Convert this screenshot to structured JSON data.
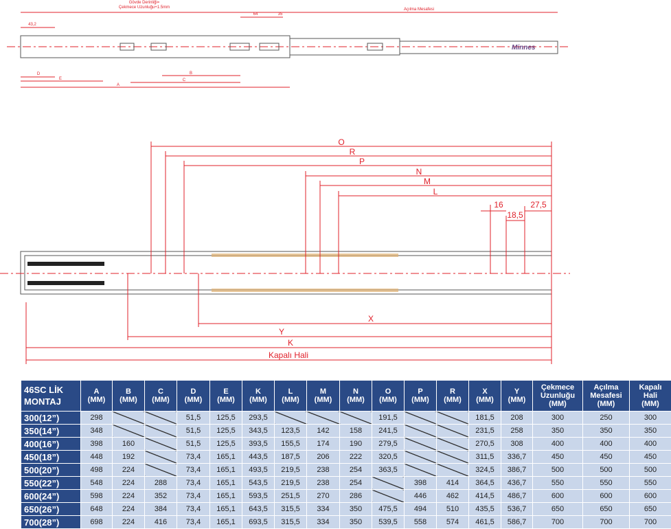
{
  "top_drawing": {
    "title_lines": [
      "Gövde Derinliği=",
      "Çekmece Uzunluğu+1.5mm"
    ],
    "opening_label": "Açılma Mesafesi",
    "dim_43": "43,2",
    "dim_64": "64",
    "dim_35": "35",
    "labels": [
      "D",
      "E",
      "A",
      "B",
      "C"
    ],
    "brand": "Minnes"
  },
  "middle_drawing": {
    "dimensions": [
      "O",
      "R",
      "P",
      "N",
      "M",
      "L",
      "16",
      "18,5",
      "27,5",
      "X",
      "Y",
      "K",
      "Kapalı Hali"
    ]
  },
  "table": {
    "header": [
      "46SC LİK\nMONTAJ",
      "A\n(MM)",
      "B\n(MM)",
      "C\n(MM)",
      "D\n(MM)",
      "E\n(MM)",
      "K\n(MM)",
      "L\n(MM)",
      "M\n(MM)",
      "N\n(MM)",
      "O\n(MM)",
      "P\n(MM)",
      "R\n(MM)",
      "X\n(MM)",
      "Y\n(MM)",
      "Çekmece\nUzunluğu\n(MM)",
      "Açılma\nMesafesi\n(MM)",
      "Kapalı\nHali\n(MM)"
    ],
    "rows": [
      [
        "300(12”)",
        "298",
        null,
        null,
        "51,5",
        "125,5",
        "293,5",
        null,
        null,
        null,
        "191,5",
        null,
        null,
        "181,5",
        "208",
        "300",
        "250",
        "300"
      ],
      [
        "350(14”)",
        "348",
        null,
        null,
        "51,5",
        "125,5",
        "343,5",
        "123,5",
        "142",
        "158",
        "241,5",
        null,
        null,
        "231,5",
        "258",
        "350",
        "350",
        "350"
      ],
      [
        "400(16”)",
        "398",
        "160",
        null,
        "51,5",
        "125,5",
        "393,5",
        "155,5",
        "174",
        "190",
        "279,5",
        null,
        null,
        "270,5",
        "308",
        "400",
        "400",
        "400"
      ],
      [
        "450(18”)",
        "448",
        "192",
        null,
        "73,4",
        "165,1",
        "443,5",
        "187,5",
        "206",
        "222",
        "320,5",
        null,
        null,
        "311,5",
        "336,7",
        "450",
        "450",
        "450"
      ],
      [
        "500(20”)",
        "498",
        "224",
        null,
        "73,4",
        "165,1",
        "493,5",
        "219,5",
        "238",
        "254",
        "363,5",
        null,
        null,
        "324,5",
        "386,7",
        "500",
        "500",
        "500"
      ],
      [
        "550(22”)",
        "548",
        "224",
        "288",
        "73,4",
        "165,1",
        "543,5",
        "219,5",
        "238",
        "254",
        null,
        "398",
        "414",
        "364,5",
        "436,7",
        "550",
        "550",
        "550"
      ],
      [
        "600(24”)",
        "598",
        "224",
        "352",
        "73,4",
        "165,1",
        "593,5",
        "251,5",
        "270",
        "286",
        null,
        "446",
        "462",
        "414,5",
        "486,7",
        "600",
        "600",
        "600"
      ],
      [
        "650(26”)",
        "648",
        "224",
        "384",
        "73,4",
        "165,1",
        "643,5",
        "315,5",
        "334",
        "350",
        "475,5",
        "494",
        "510",
        "435,5",
        "536,7",
        "650",
        "650",
        "650"
      ],
      [
        "700(28”)",
        "698",
        "224",
        "416",
        "73,4",
        "165,1",
        "693,5",
        "315,5",
        "334",
        "350",
        "539,5",
        "558",
        "574",
        "461,5",
        "586,7",
        "700",
        "700",
        "700"
      ]
    ]
  }
}
